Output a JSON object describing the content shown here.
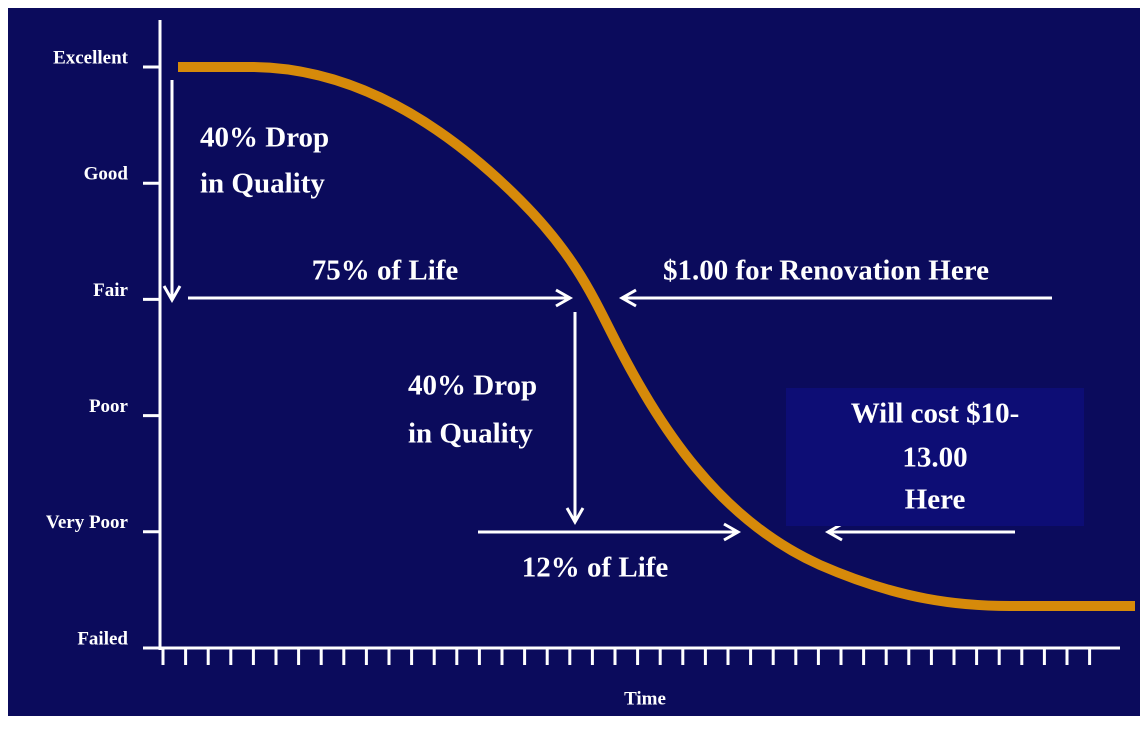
{
  "y_axis": {
    "labels": [
      "Excellent",
      "Good",
      "Fair",
      "Poor",
      "Very Poor",
      "Failed"
    ]
  },
  "x_axis": {
    "label": "Time"
  },
  "annotations": {
    "first_drop": [
      "40% Drop",
      "in Quality"
    ],
    "first_life": "75% of Life",
    "renovation": "$1.00 for Renovation Here",
    "second_drop": [
      "40% Drop",
      "in Quality"
    ],
    "second_life": "12% of Life",
    "cost_box": [
      "Will cost $10-",
      "13.00",
      "Here"
    ]
  }
}
